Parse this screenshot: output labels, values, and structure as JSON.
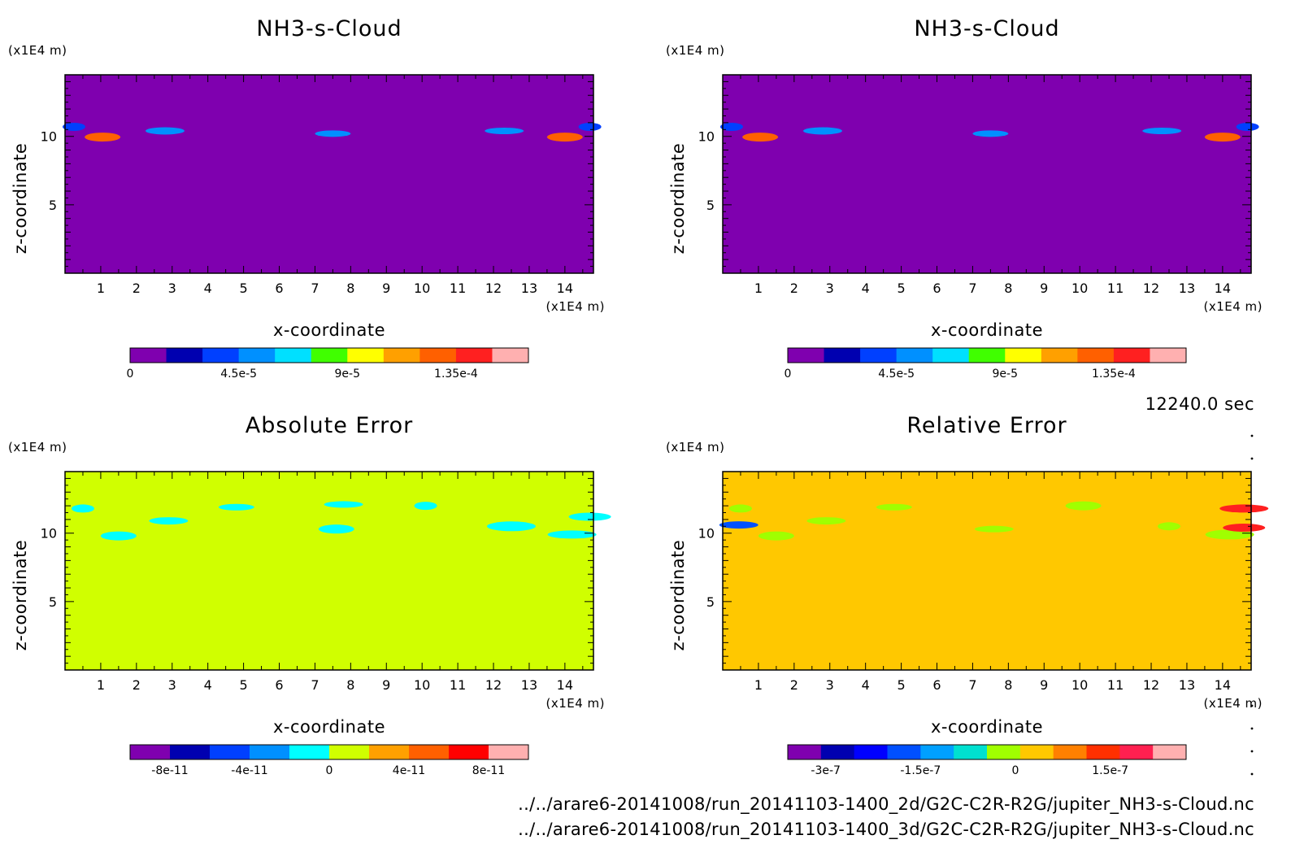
{
  "timestamp": "12240.0 sec",
  "footer_lines": [
    "../../arare6-20141008/run_20141103-1400_2d/G2C-C2R-R2G/jupiter_NH3-s-Cloud.nc",
    "../../arare6-20141008/run_20141103-1400_3d/G2C-C2R-R2G/jupiter_NH3-s-Cloud.nc"
  ],
  "chart_data": [
    {
      "type": "heatmap",
      "title": "NH3-s-Cloud",
      "xlabel": "x-coordinate",
      "ylabel": "z-coordinate",
      "x_unit": "(x1E4 m)",
      "y_unit": "(x1E4 m)",
      "xlim": [
        0,
        14.8
      ],
      "ylim": [
        0,
        14.5
      ],
      "xticks": [
        "1",
        "2",
        "3",
        "4",
        "5",
        "6",
        "7",
        "8",
        "9",
        "10",
        "11",
        "12",
        "13",
        "14"
      ],
      "yticks": [
        "5",
        "10"
      ],
      "background_color": "#7f00af",
      "colorbar": {
        "colors": [
          "#7f00af",
          "#0000b0",
          "#0040ff",
          "#0090ff",
          "#00e0ff",
          "#40ff00",
          "#ffff00",
          "#ffa000",
          "#ff6000",
          "#ff2020",
          "#ffb0b0"
        ],
        "labels": [
          {
            "value": 0,
            "text": "0"
          },
          {
            "value": 4.5e-05,
            "text": "4.5e-5"
          },
          {
            "value": 9e-05,
            "text": "9e-5"
          },
          {
            "value": 0.000135,
            "text": "1.35e-4"
          }
        ],
        "min": 0,
        "max": 0.000165
      },
      "features": [
        {
          "x": 0.25,
          "z": 10.7,
          "color": "#0040ff"
        },
        {
          "x": 1.05,
          "z": 9.95,
          "color": "#ff6000"
        },
        {
          "x": 2.8,
          "z": 10.4,
          "color": "#0090ff"
        },
        {
          "x": 7.5,
          "z": 10.2,
          "color": "#0090ff"
        },
        {
          "x": 12.3,
          "z": 10.4,
          "color": "#0090ff"
        },
        {
          "x": 14.0,
          "z": 9.95,
          "color": "#ff6000"
        },
        {
          "x": 14.7,
          "z": 10.7,
          "color": "#0040ff"
        }
      ]
    },
    {
      "type": "heatmap",
      "title": "NH3-s-Cloud",
      "xlabel": "x-coordinate",
      "ylabel": "z-coordinate",
      "x_unit": "(x1E4 m)",
      "y_unit": "(x1E4 m)",
      "xlim": [
        0,
        14.8
      ],
      "ylim": [
        0,
        14.5
      ],
      "xticks": [
        "1",
        "2",
        "3",
        "4",
        "5",
        "6",
        "7",
        "8",
        "9",
        "10",
        "11",
        "12",
        "13",
        "14"
      ],
      "yticks": [
        "5",
        "10"
      ],
      "background_color": "#7f00af",
      "colorbar": {
        "colors": [
          "#7f00af",
          "#0000b0",
          "#0040ff",
          "#0090ff",
          "#00e0ff",
          "#40ff00",
          "#ffff00",
          "#ffa000",
          "#ff6000",
          "#ff2020",
          "#ffb0b0"
        ],
        "labels": [
          {
            "value": 0,
            "text": "0"
          },
          {
            "value": 4.5e-05,
            "text": "4.5e-5"
          },
          {
            "value": 9e-05,
            "text": "9e-5"
          },
          {
            "value": 0.000135,
            "text": "1.35e-4"
          }
        ],
        "min": 0,
        "max": 0.000165
      },
      "features": [
        {
          "x": 0.25,
          "z": 10.7,
          "color": "#0040ff"
        },
        {
          "x": 1.05,
          "z": 9.95,
          "color": "#ff6000"
        },
        {
          "x": 2.8,
          "z": 10.4,
          "color": "#0090ff"
        },
        {
          "x": 7.5,
          "z": 10.2,
          "color": "#0090ff"
        },
        {
          "x": 12.3,
          "z": 10.4,
          "color": "#0090ff"
        },
        {
          "x": 14.0,
          "z": 9.95,
          "color": "#ff6000"
        },
        {
          "x": 14.7,
          "z": 10.7,
          "color": "#0040ff"
        }
      ]
    },
    {
      "type": "heatmap",
      "title": "Absolute Error",
      "xlabel": "x-coordinate",
      "ylabel": "z-coordinate",
      "x_unit": "(x1E4 m)",
      "y_unit": "(x1E4 m)",
      "xlim": [
        0,
        14.8
      ],
      "ylim": [
        0,
        14.5
      ],
      "xticks": [
        "1",
        "2",
        "3",
        "4",
        "5",
        "6",
        "7",
        "8",
        "9",
        "10",
        "11",
        "12",
        "13",
        "14"
      ],
      "yticks": [
        "5",
        "10"
      ],
      "background_color": "#d0ff00",
      "colorbar": {
        "colors": [
          "#7f00af",
          "#0000b0",
          "#0040ff",
          "#0090ff",
          "#00ffff",
          "#d0ff00",
          "#ffa000",
          "#ff6000",
          "#ff0000",
          "#ffb0b0"
        ],
        "labels": [
          {
            "value": -8e-11,
            "text": "-8e-11"
          },
          {
            "value": -4e-11,
            "text": "-4e-11"
          },
          {
            "value": 0,
            "text": "0"
          },
          {
            "value": 4e-11,
            "text": "4e-11"
          },
          {
            "value": 8e-11,
            "text": "8e-11"
          }
        ],
        "min": -1e-10,
        "max": 1e-10
      },
      "features": [
        {
          "x": 0.5,
          "z": 11.8,
          "color": "#00ffff"
        },
        {
          "x": 1.5,
          "z": 9.8,
          "color": "#00ffff"
        },
        {
          "x": 2.9,
          "z": 10.9,
          "color": "#00ffff"
        },
        {
          "x": 4.8,
          "z": 11.9,
          "color": "#00ffff"
        },
        {
          "x": 7.8,
          "z": 12.1,
          "color": "#00ffff"
        },
        {
          "x": 7.6,
          "z": 10.3,
          "color": "#00ffff"
        },
        {
          "x": 10.1,
          "z": 12.0,
          "color": "#00ffff"
        },
        {
          "x": 12.5,
          "z": 10.5,
          "color": "#00ffff"
        },
        {
          "x": 14.2,
          "z": 9.9,
          "color": "#00ffff"
        },
        {
          "x": 14.7,
          "z": 11.2,
          "color": "#00ffff"
        }
      ]
    },
    {
      "type": "heatmap",
      "title": "Relative Error",
      "xlabel": "x-coordinate",
      "ylabel": "z-coordinate",
      "x_unit": "(x1E4 m)",
      "y_unit": "(x1E4 m)",
      "xlim": [
        0,
        14.8
      ],
      "ylim": [
        0,
        14.5
      ],
      "xticks": [
        "1",
        "2",
        "3",
        "4",
        "5",
        "6",
        "7",
        "8",
        "9",
        "10",
        "11",
        "12",
        "13",
        "14"
      ],
      "yticks": [
        "5",
        "10"
      ],
      "background_color": "#ffc800",
      "colorbar": {
        "colors": [
          "#7f00af",
          "#0000b0",
          "#0000ff",
          "#0050ff",
          "#00a0ff",
          "#00e0d0",
          "#a0ff00",
          "#ffc800",
          "#ff8000",
          "#ff3000",
          "#ff2050",
          "#ffb0b0"
        ],
        "labels": [
          {
            "value": -3e-07,
            "text": "-3e-7"
          },
          {
            "value": -1.5e-07,
            "text": "-1.5e-7"
          },
          {
            "value": 0,
            "text": "0"
          },
          {
            "value": 1.5e-07,
            "text": "1.5e-7"
          }
        ],
        "min": -3.6e-07,
        "max": 2.7e-07
      },
      "features": [
        {
          "x": 0.5,
          "z": 11.8,
          "color": "#a0ff00"
        },
        {
          "x": 1.5,
          "z": 9.8,
          "color": "#a0ff00"
        },
        {
          "x": 2.9,
          "z": 10.9,
          "color": "#a0ff00"
        },
        {
          "x": 4.8,
          "z": 11.9,
          "color": "#a0ff00"
        },
        {
          "x": 7.6,
          "z": 10.3,
          "color": "#a0ff00"
        },
        {
          "x": 10.1,
          "z": 12.0,
          "color": "#a0ff00"
        },
        {
          "x": 12.5,
          "z": 10.5,
          "color": "#a0ff00"
        },
        {
          "x": 14.2,
          "z": 9.9,
          "color": "#a0ff00"
        },
        {
          "x": 14.6,
          "z": 11.8,
          "color": "#ff2020"
        },
        {
          "x": 14.6,
          "z": 10.4,
          "color": "#ff2020"
        },
        {
          "x": 0.45,
          "z": 10.6,
          "color": "#0050ff"
        }
      ]
    }
  ]
}
